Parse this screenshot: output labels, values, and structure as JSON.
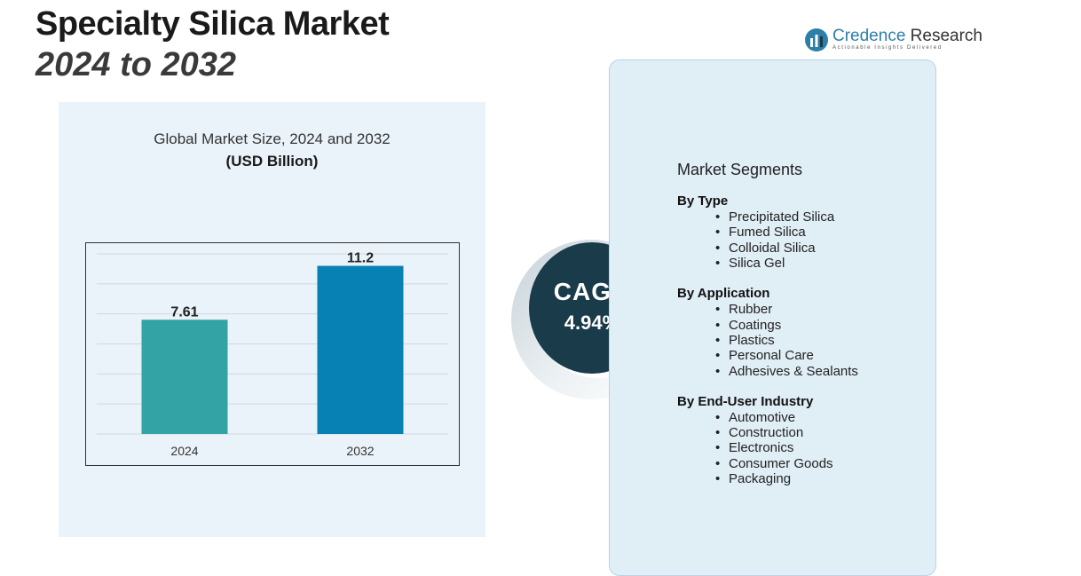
{
  "header": {
    "title_line1": "Specialty Silica Market",
    "title_line2": "2024 to 2032"
  },
  "logo": {
    "brand_part1": "Credence",
    "brand_part2": "Research",
    "tagline": "Actionable Insights Delivered",
    "color": "#2c7fa8"
  },
  "chart_data": {
    "type": "bar",
    "title": "Global Market Size, 2024 and 2032",
    "unit_label": "(USD Billion)",
    "categories": [
      "2024",
      "2032"
    ],
    "values": [
      7.61,
      11.2
    ],
    "value_labels": [
      "7.61",
      "11.2"
    ],
    "colors": [
      "#33a3a5",
      "#0780b4"
    ],
    "xlabel": "",
    "ylabel": "",
    "ylim": [
      0,
      12
    ],
    "grid": true,
    "legend": "none"
  },
  "cagr": {
    "label": "CAGR",
    "value": "4.94%"
  },
  "segments": {
    "title": "Market Segments",
    "groups": [
      {
        "title": "By Type",
        "items": [
          "Precipitated Silica",
          "Fumed Silica",
          "Colloidal Silica",
          "Silica Gel"
        ]
      },
      {
        "title": "By Application",
        "items": [
          "Rubber",
          "Coatings",
          "Plastics",
          "Personal Care",
          "Adhesives & Sealants"
        ]
      },
      {
        "title": "By End-User Industry",
        "items": [
          "Automotive",
          "Construction",
          "Electronics",
          "Consumer Goods",
          "Packaging"
        ]
      }
    ]
  }
}
